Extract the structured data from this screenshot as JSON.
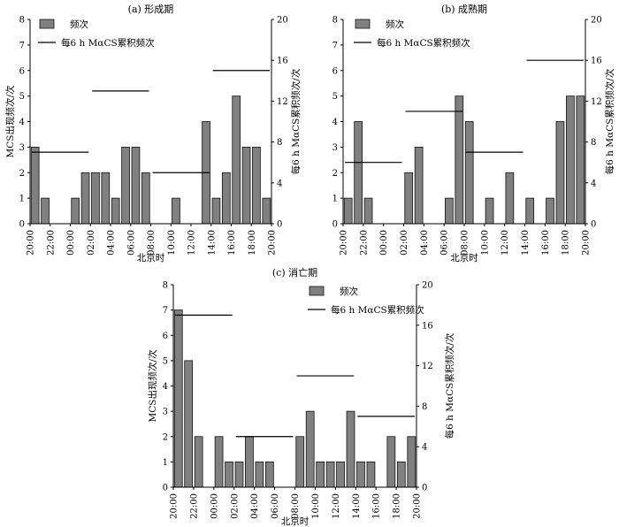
{
  "chart_data": [
    {
      "type": "bar",
      "title": "(a) 形成期",
      "xlabel": "北京时",
      "ylabel": "MCS出现频次/次",
      "y2label": "每6 h MαCS累积频次/次",
      "ylim": [
        0,
        8
      ],
      "y2lim": [
        0,
        20
      ],
      "yticks": [
        "0",
        "1",
        "2",
        "3",
        "4",
        "5",
        "6",
        "7",
        "8"
      ],
      "y2ticks": [
        "0",
        "4",
        "8",
        "12",
        "16",
        "20"
      ],
      "legend": {
        "bar": "频次",
        "line": "每6 h MαCS累积频次"
      },
      "x_tick_labels": [
        "20:00",
        "22:00",
        "00:00",
        "02:00",
        "04:00",
        "06:00",
        "08:00",
        "10:00",
        "12:00",
        "14:00",
        "16:00",
        "18:00",
        "20:00"
      ],
      "values": [
        3,
        1,
        0,
        0,
        1,
        2,
        2,
        2,
        1,
        3,
        3,
        2,
        0,
        0,
        1,
        0,
        0,
        4,
        1,
        2,
        5,
        3,
        3,
        1
      ],
      "segments": [
        {
          "x": [
            0,
            5
          ],
          "y2": 7
        },
        {
          "x": [
            6,
            11
          ],
          "y2": 13
        },
        {
          "x": [
            12,
            17
          ],
          "y2": 5
        },
        {
          "x": [
            18,
            23
          ],
          "y2": 15
        }
      ]
    },
    {
      "type": "bar",
      "title": "(b) 成熟期",
      "xlabel": "北京时",
      "ylabel": "",
      "y2label": "每6 h MαCS累积频次/次",
      "ylim": [
        0,
        8
      ],
      "y2lim": [
        0,
        20
      ],
      "yticks": [
        "0",
        "1",
        "2",
        "3",
        "4",
        "5",
        "6",
        "7",
        "8"
      ],
      "y2ticks": [
        "0",
        "4",
        "8",
        "12",
        "16",
        "20"
      ],
      "legend": {
        "bar": "频次",
        "line": "每6 h MαCS累积频次"
      },
      "x_tick_labels": [
        "20:00",
        "22:00",
        "00:00",
        "02:00",
        "04:00",
        "06:00",
        "08:00",
        "10:00",
        "12:00",
        "14:00",
        "16:00",
        "18:00",
        "20:00"
      ],
      "values": [
        1,
        4,
        1,
        0,
        0,
        0,
        2,
        3,
        0,
        0,
        1,
        5,
        4,
        0,
        1,
        0,
        2,
        0,
        1,
        0,
        1,
        4,
        5,
        5
      ],
      "segments": [
        {
          "x": [
            0,
            5
          ],
          "y2": 6
        },
        {
          "x": [
            6,
            11
          ],
          "y2": 11
        },
        {
          "x": [
            12,
            17
          ],
          "y2": 7
        },
        {
          "x": [
            18,
            23
          ],
          "y2": 16
        }
      ]
    },
    {
      "type": "bar",
      "title": "(c) 消亡期",
      "xlabel": "北京时",
      "ylabel": "MCS出现频次/次",
      "y2label": "每6 h MαCS累积频次/次",
      "ylim": [
        0,
        8
      ],
      "y2lim": [
        0,
        20
      ],
      "yticks": [
        "0",
        "1",
        "2",
        "3",
        "4",
        "5",
        "6",
        "7",
        "8"
      ],
      "y2ticks": [
        "0",
        "4",
        "8",
        "12",
        "16",
        "20"
      ],
      "legend": {
        "bar": "频次",
        "line": "每6 h MαCS累积频次"
      },
      "x_tick_labels": [
        "20:00",
        "22:00",
        "00:00",
        "02:00",
        "04:00",
        "06:00",
        "08:00",
        "10:00",
        "12:00",
        "14:00",
        "16:00",
        "18:00",
        "20:00"
      ],
      "values": [
        7,
        5,
        2,
        0,
        2,
        1,
        1,
        2,
        1,
        1,
        0,
        0,
        2,
        3,
        1,
        1,
        1,
        3,
        1,
        1,
        0,
        2,
        1,
        2
      ],
      "segments": [
        {
          "x": [
            0,
            5
          ],
          "y2": 17
        },
        {
          "x": [
            6,
            11
          ],
          "y2": 5
        },
        {
          "x": [
            12,
            17
          ],
          "y2": 11
        },
        {
          "x": [
            18,
            23
          ],
          "y2": 7
        }
      ]
    }
  ]
}
